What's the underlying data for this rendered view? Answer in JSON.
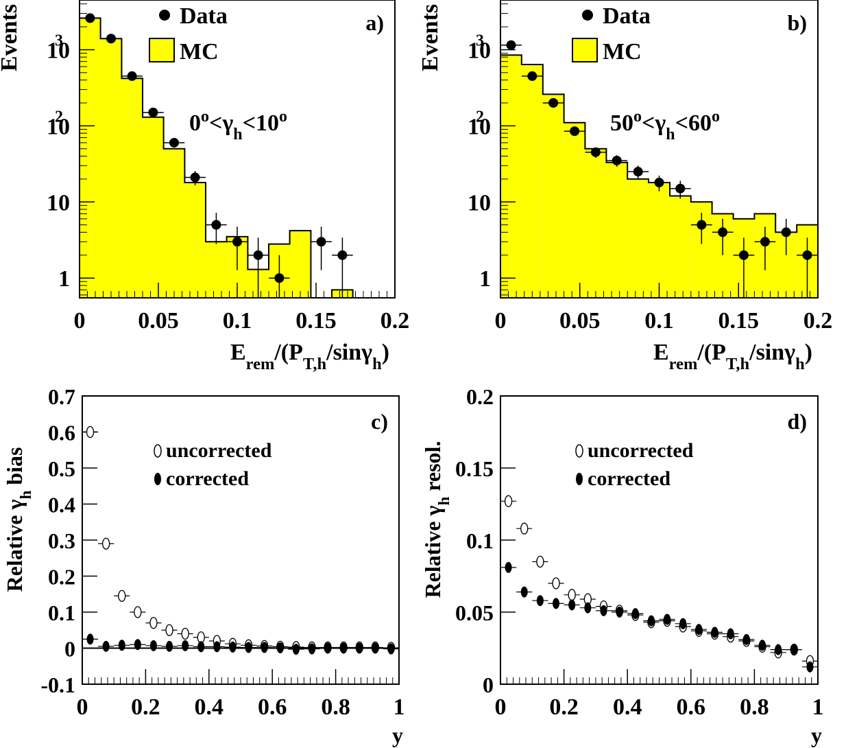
{
  "colors": {
    "histogram_fill": "#ffff00",
    "line": "#000000",
    "background": "#ffffff"
  },
  "chart_data": [
    {
      "id": "a",
      "type": "histogram",
      "panel_label": "a)",
      "ylabel": "Events",
      "xlabel": "E_rem/(P_T,h/sinγ_h)",
      "annotation": "0°<γ_h<10°",
      "legend": [
        "Data",
        "MC"
      ],
      "x_scale": "linear",
      "y_scale": "log",
      "xlim": [
        0,
        0.2
      ],
      "ylim": [
        0.55,
        4500
      ],
      "xticks": [
        0,
        0.05,
        0.1,
        0.15,
        0.2
      ],
      "yticks": [
        {
          "v": 1,
          "label": "1"
        },
        {
          "v": 10,
          "label": "10"
        },
        {
          "v": 100,
          "label": "10",
          "sup": "2"
        },
        {
          "v": 1000,
          "label": "10",
          "sup": "3"
        }
      ],
      "bin_edges": [
        0,
        0.0133,
        0.0267,
        0.04,
        0.0533,
        0.0667,
        0.08,
        0.0933,
        0.1067,
        0.12,
        0.1333,
        0.1467,
        0.16,
        0.1733,
        0.1867,
        0.2
      ],
      "mc": [
        2600,
        1400,
        420,
        130,
        50,
        18,
        3.0,
        3.5,
        1.3,
        2.8,
        4.2,
        0,
        0.7,
        0,
        0
      ],
      "data": [
        {
          "x": 0.0067,
          "y": 2600,
          "lo": 2500,
          "hi": 2700
        },
        {
          "x": 0.02,
          "y": 1400,
          "lo": 1330,
          "hi": 1470
        },
        {
          "x": 0.0333,
          "y": 450,
          "lo": 420,
          "hi": 480
        },
        {
          "x": 0.0467,
          "y": 150,
          "lo": 138,
          "hi": 162
        },
        {
          "x": 0.06,
          "y": 60,
          "lo": 52,
          "hi": 68
        },
        {
          "x": 0.0733,
          "y": 21,
          "lo": 16.5,
          "hi": 25.5
        },
        {
          "x": 0.0867,
          "y": 5,
          "lo": 2.8,
          "hi": 7.2
        },
        {
          "x": 0.1,
          "y": 3,
          "lo": 1.27,
          "hi": 4.73
        },
        {
          "x": 0.1133,
          "y": 2,
          "lo": 0.55,
          "hi": 3.4
        },
        {
          "x": 0.1267,
          "y": 1,
          "lo": 0.55,
          "hi": 2.0
        },
        {
          "x": 0.1533,
          "y": 3,
          "lo": 1.27,
          "hi": 4.73
        },
        {
          "x": 0.1667,
          "y": 2,
          "lo": 0.55,
          "hi": 3.4
        }
      ]
    },
    {
      "id": "b",
      "type": "histogram",
      "panel_label": "b)",
      "ylabel": "Events",
      "xlabel": "E_rem/(P_T,h/sinγ_h)",
      "annotation": "50°<γ_h<60°",
      "legend": [
        "Data",
        "MC"
      ],
      "x_scale": "linear",
      "y_scale": "log",
      "xlim": [
        0,
        0.2
      ],
      "ylim": [
        0.55,
        4500
      ],
      "xticks": [
        0,
        0.05,
        0.1,
        0.15,
        0.2
      ],
      "yticks": [
        {
          "v": 1,
          "label": "1"
        },
        {
          "v": 10,
          "label": "10"
        },
        {
          "v": 100,
          "label": "10",
          "sup": "2"
        },
        {
          "v": 1000,
          "label": "10",
          "sup": "3"
        }
      ],
      "bin_edges": [
        0,
        0.0133,
        0.0267,
        0.04,
        0.0533,
        0.0667,
        0.08,
        0.0933,
        0.1067,
        0.12,
        0.1333,
        0.1467,
        0.16,
        0.1733,
        0.1867,
        0.2
      ],
      "mc": [
        850,
        640,
        260,
        110,
        50,
        33,
        20,
        18,
        12,
        10,
        7,
        6,
        7,
        4,
        5
      ],
      "data": [
        {
          "x": 0.0067,
          "y": 1150,
          "lo": 1080,
          "hi": 1220
        },
        {
          "x": 0.02,
          "y": 450,
          "lo": 420,
          "hi": 480
        },
        {
          "x": 0.0333,
          "y": 200,
          "lo": 186,
          "hi": 214
        },
        {
          "x": 0.0467,
          "y": 85,
          "lo": 76,
          "hi": 94
        },
        {
          "x": 0.06,
          "y": 45,
          "lo": 38,
          "hi": 52
        },
        {
          "x": 0.0733,
          "y": 35,
          "lo": 29,
          "hi": 41
        },
        {
          "x": 0.0867,
          "y": 25,
          "lo": 20,
          "hi": 30
        },
        {
          "x": 0.1,
          "y": 18,
          "lo": 13.8,
          "hi": 22.2
        },
        {
          "x": 0.1133,
          "y": 15,
          "lo": 11,
          "hi": 19
        },
        {
          "x": 0.1267,
          "y": 5,
          "lo": 2.8,
          "hi": 7.2
        },
        {
          "x": 0.14,
          "y": 4,
          "lo": 2.0,
          "hi": 6.0
        },
        {
          "x": 0.1533,
          "y": 2,
          "lo": 0.55,
          "hi": 3.4
        },
        {
          "x": 0.1667,
          "y": 3,
          "lo": 1.27,
          "hi": 4.73
        },
        {
          "x": 0.18,
          "y": 4,
          "lo": 2.0,
          "hi": 6.0
        },
        {
          "x": 0.1933,
          "y": 2,
          "lo": 0.55,
          "hi": 3.4
        }
      ]
    },
    {
      "id": "c",
      "type": "scatter",
      "panel_label": "c)",
      "ylabel": "Relative γ_h bias",
      "xlabel": "y",
      "legend": [
        "uncorrected",
        "corrected"
      ],
      "xlim": [
        0,
        1
      ],
      "ylim": [
        -0.1,
        0.7
      ],
      "xticks": [
        0,
        0.2,
        0.4,
        0.6,
        0.8,
        1
      ],
      "yticks": [
        -0.1,
        0,
        0.1,
        0.2,
        0.3,
        0.4,
        0.5,
        0.6,
        0.7
      ],
      "ytick_labels": [
        "-0.1",
        "0",
        "0.1",
        "0.2",
        "0.3",
        "0.4",
        "0.5",
        "0.6",
        "0.7"
      ],
      "x": [
        0.025,
        0.075,
        0.125,
        0.175,
        0.225,
        0.275,
        0.325,
        0.375,
        0.425,
        0.475,
        0.525,
        0.575,
        0.625,
        0.675,
        0.725,
        0.775,
        0.825,
        0.875,
        0.925,
        0.975
      ],
      "series": [
        {
          "name": "uncorrected",
          "marker": "open",
          "values": [
            0.6,
            0.29,
            0.145,
            0.1,
            0.07,
            0.05,
            0.04,
            0.03,
            0.02,
            0.012,
            0.008,
            0.006,
            0.004,
            0.003,
            0.002,
            0.002,
            0.002,
            0.002,
            0.002,
            0.001
          ]
        },
        {
          "name": "corrected",
          "marker": "filled",
          "values": [
            0.025,
            0.005,
            0.008,
            0.01,
            0.007,
            0.005,
            0.007,
            0.004,
            0.004,
            0.003,
            0.002,
            0.002,
            0.001,
            -0.003,
            -0.002,
            0.0,
            0.0,
            0.0,
            0.0,
            -0.002
          ]
        }
      ]
    },
    {
      "id": "d",
      "type": "scatter",
      "panel_label": "d)",
      "ylabel": "Relative γ_h resol.",
      "xlabel": "y",
      "legend": [
        "uncorrected",
        "corrected"
      ],
      "xlim": [
        0,
        1
      ],
      "ylim": [
        0,
        0.2
      ],
      "xticks": [
        0,
        0.2,
        0.4,
        0.6,
        0.8,
        1
      ],
      "yticks": [
        0,
        0.05,
        0.1,
        0.15,
        0.2
      ],
      "ytick_labels": [
        "0",
        "0.05",
        "0.1",
        "0.15",
        "0.2"
      ],
      "x": [
        0.025,
        0.075,
        0.125,
        0.175,
        0.225,
        0.275,
        0.325,
        0.375,
        0.425,
        0.475,
        0.525,
        0.575,
        0.625,
        0.675,
        0.725,
        0.775,
        0.825,
        0.875,
        0.925,
        0.975
      ],
      "series": [
        {
          "name": "uncorrected",
          "marker": "open",
          "values": [
            0.127,
            0.108,
            0.085,
            0.07,
            0.062,
            0.059,
            0.054,
            0.051,
            0.048,
            0.043,
            0.044,
            0.04,
            0.037,
            0.035,
            0.033,
            0.03,
            0.026,
            0.022,
            0.024,
            0.016
          ]
        },
        {
          "name": "corrected",
          "marker": "filled",
          "values": [
            0.081,
            0.064,
            0.058,
            0.056,
            0.055,
            0.053,
            0.051,
            0.05,
            0.049,
            0.044,
            0.045,
            0.042,
            0.038,
            0.036,
            0.035,
            0.031,
            0.027,
            0.024,
            0.024,
            0.012
          ]
        }
      ]
    }
  ]
}
